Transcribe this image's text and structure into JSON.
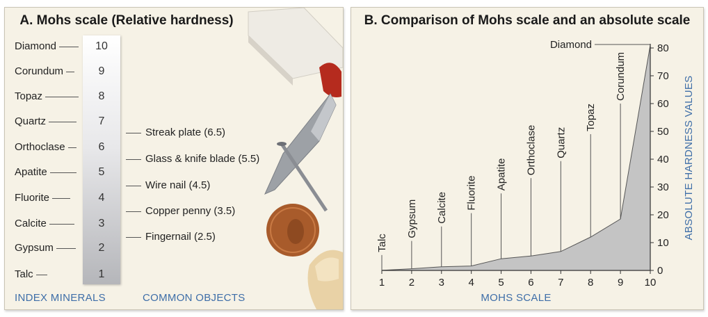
{
  "panel_a": {
    "title": "A. Mohs scale (Relative hardness)",
    "minerals": [
      "Diamond",
      "Corundum",
      "Topaz",
      "Quartz",
      "Orthoclase",
      "Apatite",
      "Fluorite",
      "Calcite",
      "Gypsum",
      "Talc"
    ],
    "scale_values": [
      "10",
      "9",
      "8",
      "7",
      "6",
      "5",
      "4",
      "3",
      "2",
      "1"
    ],
    "common_objects": [
      "Streak plate (6.5)",
      "Glass & knife blade (5.5)",
      "Wire nail (4.5)",
      "Copper penny (3.5)",
      "Fingernail (2.5)"
    ],
    "footer_left": "INDEX MINERALS",
    "footer_right": "COMMON OBJECTS"
  },
  "chart_data": {
    "type": "area",
    "title": "B. Comparison of Mohs scale and an absolute scale",
    "xlabel": "MOHS SCALE",
    "ylabel": "ABSOLUTE HARDNESS VALUES",
    "x": [
      1,
      2,
      3,
      4,
      5,
      6,
      7,
      8,
      9,
      10
    ],
    "values": [
      0.03,
      0.6,
      1.3,
      1.6,
      4.2,
      5.2,
      6.8,
      12,
      18.5,
      81
    ],
    "point_labels": [
      "Talc",
      "Gypsum",
      "Calcite",
      "Fluorite",
      "Apatite",
      "Orthoclase",
      "Quartz",
      "Topaz",
      "Corundum",
      "Diamond"
    ],
    "xlim": [
      1,
      10
    ],
    "ylim": [
      0,
      80
    ],
    "x_ticks": [
      "1",
      "2",
      "3",
      "4",
      "5",
      "6",
      "7",
      "8",
      "9",
      "10"
    ],
    "y_ticks": [
      "0",
      "10",
      "20",
      "30",
      "40",
      "50",
      "60",
      "70",
      "80"
    ],
    "y_axis_side": "right",
    "fill_color": "#c4c4c4",
    "axis_label_color": "#3e6ea8"
  }
}
